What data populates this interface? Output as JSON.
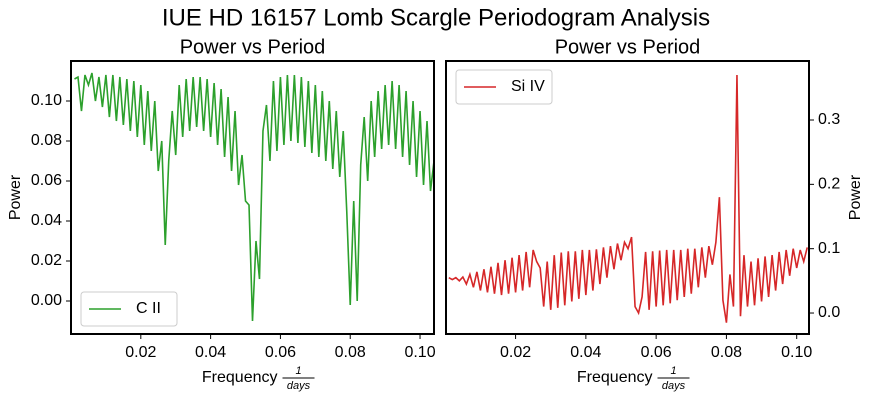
{
  "title": "IUE HD 16157 Lomb Scargle Periodogram Analysis",
  "chart_data": [
    {
      "type": "line",
      "title": "Power vs Period",
      "xlabel": "Frequency",
      "xlabel_fraction": {
        "numerator": "1",
        "denominator": "days"
      },
      "ylabel": "Power",
      "yaxis_side": "left",
      "legend": "lower left",
      "xlim": [
        0.0,
        0.104
      ],
      "ylim": [
        -0.0165,
        0.12
      ],
      "xticks": [
        0.02,
        0.04,
        0.06,
        0.08,
        {
          "value": 0.1,
          "label": "0.10"
        }
      ],
      "yticks": [
        {
          "value": 0.0,
          "label": "0.00"
        },
        0.02,
        0.04,
        0.06,
        0.08,
        {
          "value": 0.1,
          "label": "0.10"
        }
      ],
      "x": [
        0.001,
        0.002,
        0.003,
        0.004,
        0.005,
        0.006,
        0.007,
        0.008,
        0.009,
        0.01,
        0.011,
        0.012,
        0.013,
        0.014,
        0.015,
        0.016,
        0.017,
        0.018,
        0.019,
        0.02,
        0.021,
        0.022,
        0.023,
        0.024,
        0.025,
        0.026,
        0.027,
        0.028,
        0.029,
        0.03,
        0.031,
        0.032,
        0.033,
        0.034,
        0.035,
        0.036,
        0.037,
        0.038,
        0.039,
        0.04,
        0.041,
        0.042,
        0.043,
        0.044,
        0.045,
        0.046,
        0.047,
        0.048,
        0.049,
        0.05,
        0.051,
        0.052,
        0.053,
        0.054,
        0.055,
        0.056,
        0.057,
        0.058,
        0.059,
        0.06,
        0.061,
        0.062,
        0.063,
        0.064,
        0.065,
        0.066,
        0.067,
        0.068,
        0.069,
        0.07,
        0.071,
        0.072,
        0.073,
        0.074,
        0.075,
        0.076,
        0.077,
        0.078,
        0.079,
        0.08,
        0.081,
        0.082,
        0.083,
        0.084,
        0.085,
        0.086,
        0.087,
        0.088,
        0.089,
        0.09,
        0.091,
        0.092,
        0.093,
        0.094,
        0.095,
        0.096,
        0.097,
        0.098,
        0.099,
        0.1,
        0.101,
        0.102,
        0.103,
        0.104
      ],
      "series": [
        {
          "name": "C II",
          "color": "#2ca02c",
          "values": [
            0.111,
            0.112,
            0.095,
            0.113,
            0.108,
            0.114,
            0.1,
            0.112,
            0.097,
            0.113,
            0.092,
            0.113,
            0.09,
            0.112,
            0.088,
            0.111,
            0.085,
            0.11,
            0.082,
            0.108,
            0.078,
            0.105,
            0.075,
            0.1,
            0.065,
            0.08,
            0.028,
            0.07,
            0.095,
            0.073,
            0.108,
            0.082,
            0.111,
            0.085,
            0.112,
            0.087,
            0.112,
            0.085,
            0.111,
            0.082,
            0.109,
            0.078,
            0.106,
            0.072,
            0.102,
            0.065,
            0.095,
            0.058,
            0.073,
            0.05,
            0.048,
            -0.01,
            0.03,
            0.011,
            0.085,
            0.098,
            0.07,
            0.11,
            0.075,
            0.112,
            0.078,
            0.113,
            0.08,
            0.113,
            0.079,
            0.112,
            0.077,
            0.11,
            0.074,
            0.108,
            0.072,
            0.105,
            0.07,
            0.1,
            0.066,
            0.095,
            0.062,
            0.085,
            0.045,
            -0.002,
            0.05,
            0.0,
            0.068,
            0.092,
            0.06,
            0.1,
            0.072,
            0.105,
            0.076,
            0.108,
            0.078,
            0.11,
            0.076,
            0.108,
            0.072,
            0.105,
            0.068,
            0.1,
            0.062,
            0.095,
            0.058,
            0.09,
            0.055,
            0.07
          ]
        }
      ]
    },
    {
      "type": "line",
      "title": "Power vs Period",
      "xlabel": "Frequency",
      "xlabel_fraction": {
        "numerator": "1",
        "denominator": "days"
      },
      "ylabel": "Power",
      "yaxis_side": "right",
      "legend": "upper left",
      "xlim": [
        0.0002,
        0.1035
      ],
      "ylim": [
        -0.0326,
        0.3917
      ],
      "xticks": [
        0.02,
        0.04,
        0.06,
        0.08,
        {
          "value": 0.1,
          "label": "0.10"
        }
      ],
      "yticks": [
        {
          "value": 0.0,
          "label": "0.0"
        },
        0.1,
        0.2,
        0.3
      ],
      "x": [
        0.001,
        0.002,
        0.003,
        0.004,
        0.005,
        0.006,
        0.007,
        0.008,
        0.009,
        0.01,
        0.011,
        0.012,
        0.013,
        0.014,
        0.015,
        0.016,
        0.017,
        0.018,
        0.019,
        0.02,
        0.021,
        0.022,
        0.023,
        0.024,
        0.025,
        0.026,
        0.027,
        0.028,
        0.029,
        0.03,
        0.031,
        0.032,
        0.033,
        0.034,
        0.035,
        0.036,
        0.037,
        0.038,
        0.039,
        0.04,
        0.041,
        0.042,
        0.043,
        0.044,
        0.045,
        0.046,
        0.047,
        0.048,
        0.049,
        0.05,
        0.051,
        0.052,
        0.053,
        0.054,
        0.055,
        0.056,
        0.057,
        0.058,
        0.059,
        0.06,
        0.061,
        0.062,
        0.063,
        0.064,
        0.065,
        0.066,
        0.067,
        0.068,
        0.069,
        0.07,
        0.071,
        0.072,
        0.073,
        0.074,
        0.075,
        0.076,
        0.077,
        0.078,
        0.079,
        0.08,
        0.081,
        0.082,
        0.083,
        0.084,
        0.085,
        0.086,
        0.087,
        0.088,
        0.089,
        0.09,
        0.091,
        0.092,
        0.093,
        0.094,
        0.095,
        0.096,
        0.097,
        0.098,
        0.099,
        0.1,
        0.101,
        0.102,
        0.103
      ],
      "series": [
        {
          "name": "Si IV",
          "color": "#d62728",
          "axis": "y2",
          "values": [
            0.055,
            0.052,
            0.055,
            0.05,
            0.056,
            0.045,
            0.06,
            0.04,
            0.064,
            0.035,
            0.068,
            0.032,
            0.072,
            0.03,
            0.078,
            0.028,
            0.082,
            0.03,
            0.086,
            0.032,
            0.09,
            0.035,
            0.095,
            0.04,
            0.098,
            0.08,
            0.07,
            0.01,
            0.08,
            0.005,
            0.09,
            0.008,
            0.094,
            0.012,
            0.096,
            0.018,
            0.096,
            0.022,
            0.098,
            0.028,
            0.098,
            0.035,
            0.099,
            0.045,
            0.102,
            0.055,
            0.104,
            0.068,
            0.108,
            0.082,
            0.11,
            0.1,
            0.118,
            0.01,
            0.0,
            0.025,
            0.095,
            0.005,
            0.096,
            0.01,
            0.097,
            0.012,
            0.098,
            0.015,
            0.098,
            0.02,
            0.098,
            0.025,
            0.1,
            0.03,
            0.1,
            0.04,
            0.102,
            0.055,
            0.104,
            0.075,
            0.11,
            0.18,
            0.02,
            -0.015,
            0.06,
            0.01,
            0.37,
            -0.005,
            0.09,
            0.01,
            0.08,
            0.012,
            0.085,
            0.018,
            0.088,
            0.025,
            0.09,
            0.035,
            0.095,
            0.045,
            0.098,
            0.058,
            0.1,
            0.07,
            0.098,
            0.08,
            0.102
          ]
        }
      ]
    }
  ]
}
